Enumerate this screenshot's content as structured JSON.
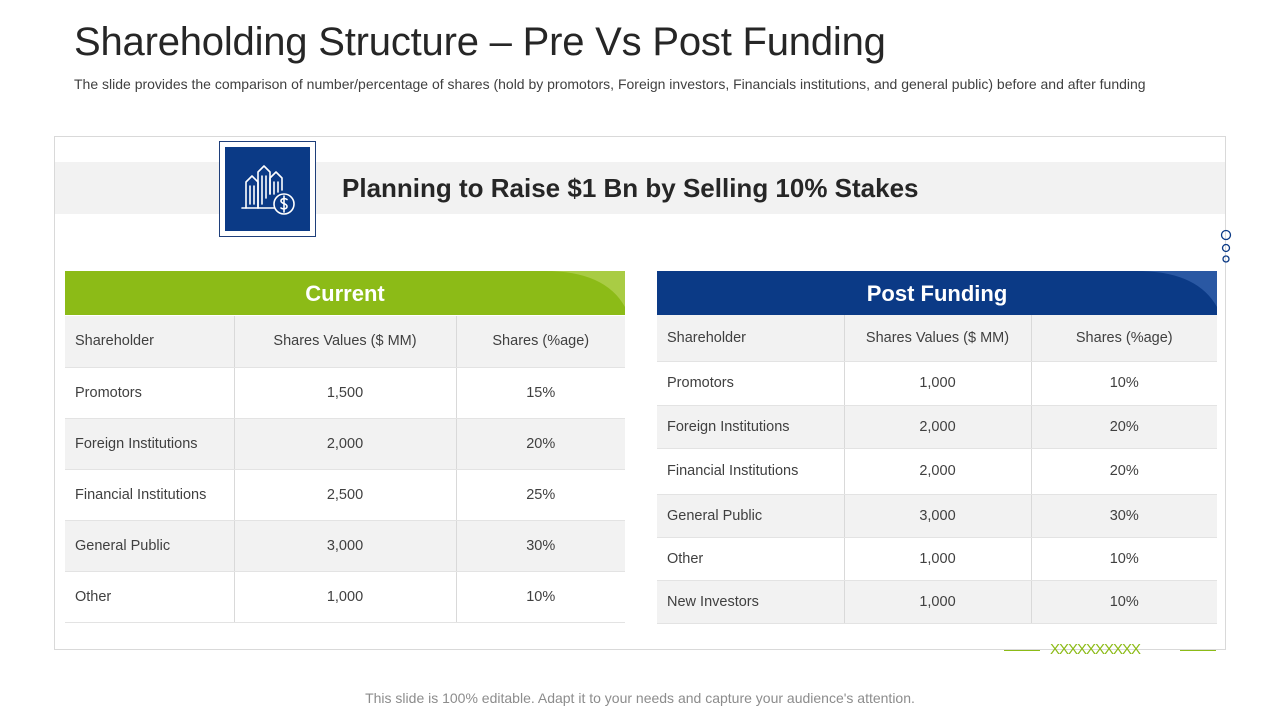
{
  "slide": {
    "title": "Shareholding Structure – Pre Vs Post Funding",
    "subtitle": "The slide provides the comparison of number/percentage of shares (hold by promotors, Foreign investors, Financials institutions, and general public) before and after funding",
    "banner": "Planning to Raise $1 Bn by Selling 10% Stakes",
    "footer": "This slide is 100% editable. Adapt it to your needs and capture your audience's attention.",
    "decoration_marks": "XXXXXXXXXX"
  },
  "icon": {
    "name": "buildings-dollar-icon"
  },
  "colors": {
    "current_header": "#8cbb17",
    "post_header": "#0b3a86",
    "row_alt": "#f2f2f2",
    "accent_green": "#8cbb17"
  },
  "current": {
    "heading": "Current",
    "columns": [
      "Shareholder",
      "Shares Values ($ MM)",
      "Shares (%age)"
    ],
    "rows": [
      [
        "Promotors",
        "1,500",
        "15%"
      ],
      [
        "Foreign Institutions",
        "2,000",
        "20%"
      ],
      [
        "Financial Institutions",
        "2,500",
        "25%"
      ],
      [
        "General Public",
        "3,000",
        "30%"
      ],
      [
        "Other",
        "1,000",
        "10%"
      ]
    ]
  },
  "post": {
    "heading": "Post Funding",
    "columns": [
      "Shareholder",
      "Shares Values ($ MM)",
      "Shares (%age)"
    ],
    "rows": [
      [
        "Promotors",
        "1,000",
        "10%"
      ],
      [
        "Foreign Institutions",
        "2,000",
        "20%"
      ],
      [
        "Financial Institutions",
        "2,000",
        "20%"
      ],
      [
        "General Public",
        "3,000",
        "30%"
      ],
      [
        "Other",
        "1,000",
        "10%"
      ],
      [
        "New Investors",
        "1,000",
        "10%"
      ]
    ]
  }
}
